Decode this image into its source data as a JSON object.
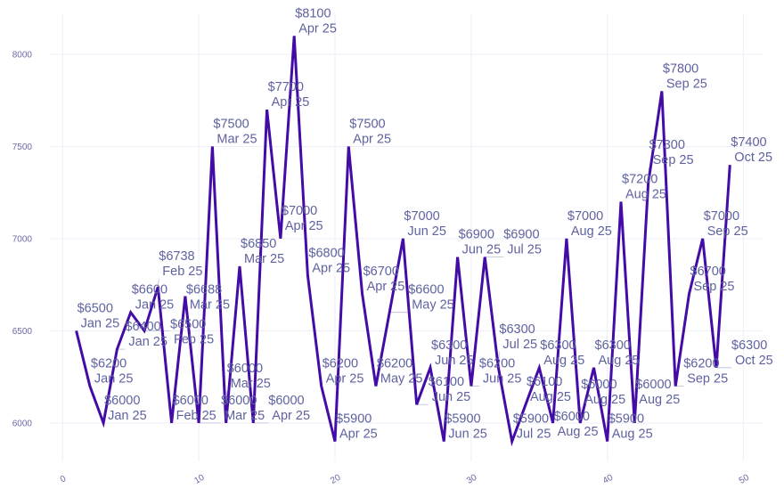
{
  "chart_data": {
    "type": "line",
    "title": "",
    "xlabel": "",
    "ylabel": "",
    "xlim": [
      -1,
      51.4
    ],
    "ylim": [
      5792,
      8222
    ],
    "grid": true,
    "legend": "none",
    "line_color": "#440ca6",
    "label_color": "#5f62a0",
    "x_ticks": [
      "0",
      "10",
      "20",
      "30",
      "40",
      "50"
    ],
    "x_tick_values": [
      0,
      10,
      20,
      30,
      40,
      50
    ],
    "y_ticks": [
      "6000",
      "6500",
      "7000",
      "7500",
      "8000"
    ],
    "y_tick_values": [
      6000,
      6500,
      7000,
      7500,
      8000
    ],
    "points": [
      {
        "x": 1,
        "y": 6500,
        "price": "$6500",
        "date": "Jan 25"
      },
      {
        "x": 2,
        "y": 6200,
        "price": "$6200",
        "date": "Jan 25"
      },
      {
        "x": 3,
        "y": 6000,
        "price": "$6000",
        "date": "Jan 25"
      },
      {
        "x": 4,
        "y": 6400,
        "price": "$6400",
        "date": "Jan 25"
      },
      {
        "x": 5,
        "y": 6600,
        "price": "$6600",
        "date": "Jan 25"
      },
      {
        "x": 6,
        "y": 6500,
        "price": "$6500",
        "date": "Feb 25"
      },
      {
        "x": 7,
        "y": 6738,
        "price": "$6738",
        "date": "Feb 25"
      },
      {
        "x": 8,
        "y": 6000,
        "price": "$6000",
        "date": "Feb 25"
      },
      {
        "x": 9,
        "y": 6688,
        "price": "$6688",
        "date": "Mar 25"
      },
      {
        "x": 10,
        "y": 6000,
        "price": "$6000",
        "date": "Mar 25"
      },
      {
        "x": 11,
        "y": 7500,
        "price": "$7500",
        "date": "Mar 25"
      },
      {
        "x": 12,
        "y": 6000,
        "price": "$6000",
        "date": "Mar 25"
      },
      {
        "x": 13,
        "y": 6850,
        "price": "$6850",
        "date": "Mar 25"
      },
      {
        "x": 14,
        "y": 6000,
        "price": "$6000",
        "date": "Apr 25"
      },
      {
        "x": 15,
        "y": 7700,
        "price": "$7700",
        "date": "Apr 25"
      },
      {
        "x": 16,
        "y": 7000,
        "price": "$7000",
        "date": "Apr 25"
      },
      {
        "x": 17,
        "y": 8100,
        "price": "$8100",
        "date": "Apr 25"
      },
      {
        "x": 18,
        "y": 6800,
        "price": "$6800",
        "date": "Apr 25"
      },
      {
        "x": 19,
        "y": 6200,
        "price": "$6200",
        "date": "Apr 25"
      },
      {
        "x": 20,
        "y": 5900,
        "price": "$5900",
        "date": "Apr 25"
      },
      {
        "x": 21,
        "y": 7500,
        "price": "$7500",
        "date": "Apr 25"
      },
      {
        "x": 22,
        "y": 6700,
        "price": "$6700",
        "date": "Apr 25"
      },
      {
        "x": 23,
        "y": 6200,
        "price": "$6200",
        "date": "May 25"
      },
      {
        "x": 24,
        "y": 6600,
        "price": "$6600",
        "date": "May 25"
      },
      {
        "x": 25,
        "y": 7000,
        "price": "$7000",
        "date": "Jun 25"
      },
      {
        "x": 26,
        "y": 6100,
        "price": "$6100",
        "date": "Jun 25"
      },
      {
        "x": 27,
        "y": 6300,
        "price": "$6300",
        "date": "Jun 25"
      },
      {
        "x": 28,
        "y": 5900,
        "price": "$5900",
        "date": "Jun 25"
      },
      {
        "x": 29,
        "y": 6900,
        "price": "$6900",
        "date": "Jun 25"
      },
      {
        "x": 30,
        "y": 6200,
        "price": "$6200",
        "date": "Jun 25"
      },
      {
        "x": 31,
        "y": 6900,
        "price": "$6900",
        "date": "Jul 25"
      },
      {
        "x": 32,
        "y": 6300,
        "price": "$6300",
        "date": "Jul 25"
      },
      {
        "x": 33,
        "y": 5900,
        "price": "$5900",
        "date": "Jul 25"
      },
      {
        "x": 34,
        "y": 6100,
        "price": "$6100",
        "date": "Aug 25"
      },
      {
        "x": 35,
        "y": 6300,
        "price": "$6300",
        "date": "Aug 25"
      },
      {
        "x": 36,
        "y": 6000,
        "price": "$6000",
        "date": "Aug 25"
      },
      {
        "x": 37,
        "y": 7000,
        "price": "$7000",
        "date": "Aug 25"
      },
      {
        "x": 38,
        "y": 6000,
        "price": "$6000",
        "date": "Aug 25"
      },
      {
        "x": 39,
        "y": 6300,
        "price": "$6300",
        "date": "Aug 25"
      },
      {
        "x": 40,
        "y": 5900,
        "price": "$5900",
        "date": "Aug 25"
      },
      {
        "x": 41,
        "y": 7200,
        "price": "$7200",
        "date": "Aug 25"
      },
      {
        "x": 42,
        "y": 6000,
        "price": "$6000",
        "date": "Aug 25"
      },
      {
        "x": 43,
        "y": 7300,
        "price": "$7300",
        "date": "Sep 25"
      },
      {
        "x": 44,
        "y": 7800,
        "price": "$7800",
        "date": "Sep 25"
      },
      {
        "x": 45,
        "y": 6200,
        "price": "$6200",
        "date": "Sep 25"
      },
      {
        "x": 46,
        "y": 6700,
        "price": "$6700",
        "date": "Sep 25"
      },
      {
        "x": 47,
        "y": 7000,
        "price": "$7000",
        "date": "Sep 25"
      },
      {
        "x": 48,
        "y": 6300,
        "price": "$6300",
        "date": "Oct 25"
      },
      {
        "x": 49,
        "y": 7400,
        "price": "$7400",
        "date": "Oct 25"
      }
    ]
  }
}
